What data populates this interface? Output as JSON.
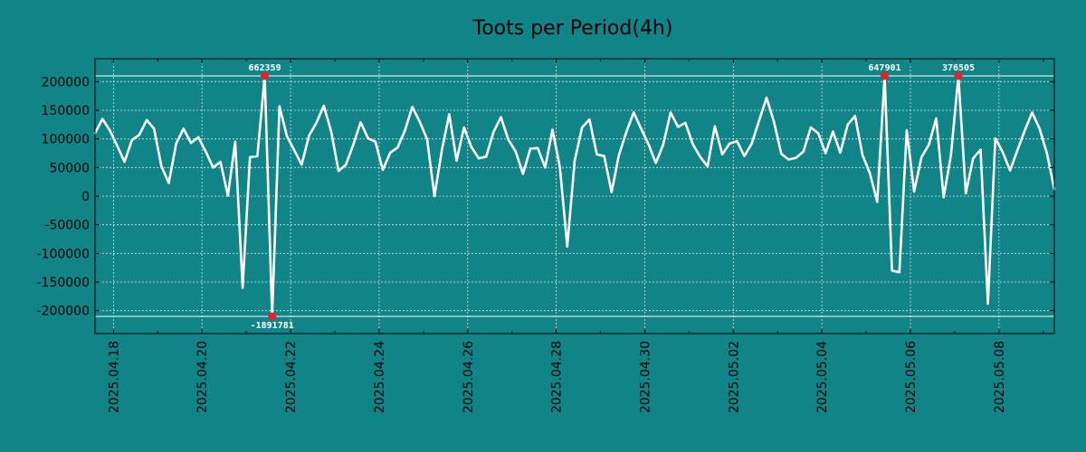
{
  "colors": {
    "background": "#118488",
    "line": "#ffffff",
    "marker": "#e8202a",
    "grid": "#cfe9e8",
    "axis": "#000000"
  },
  "chart_data": {
    "type": "line",
    "title": "Toots per Period(4h)",
    "xlabel": "",
    "ylabel": "",
    "grid": true,
    "x_range": [
      0,
      130
    ],
    "ylim": [
      -240000,
      240000
    ],
    "y_ticks": [
      {
        "value": 200000,
        "label": "200000"
      },
      {
        "value": 150000,
        "label": "150000"
      },
      {
        "value": 100000,
        "label": "100000"
      },
      {
        "value": 50000,
        "label": "50000"
      },
      {
        "value": 0,
        "label": "0"
      },
      {
        "value": -50000,
        "label": "-50000"
      },
      {
        "value": -100000,
        "label": "-100000"
      },
      {
        "value": -150000,
        "label": "-150000"
      },
      {
        "value": -200000,
        "label": "-200000"
      }
    ],
    "x_ticks": [
      {
        "value": 2.5,
        "label": "2025.04.18"
      },
      {
        "value": 14.5,
        "label": "2025.04.20"
      },
      {
        "value": 26.5,
        "label": "2025.04.22"
      },
      {
        "value": 38.5,
        "label": "2025.04.24"
      },
      {
        "value": 50.5,
        "label": "2025.04.26"
      },
      {
        "value": 62.5,
        "label": "2025.04.28"
      },
      {
        "value": 74.5,
        "label": "2025.04.30"
      },
      {
        "value": 86.5,
        "label": "2025.05.02"
      },
      {
        "value": 98.5,
        "label": "2025.05.04"
      },
      {
        "value": 110.5,
        "label": "2025.05.06"
      },
      {
        "value": 122.5,
        "label": "2025.05.08"
      }
    ],
    "x_minor_ticks": [
      8.5,
      20.5,
      32.5,
      44.5,
      56.5,
      68.5,
      80.5,
      92.5,
      104.5,
      116.5,
      128.5
    ],
    "hlines": [
      210000,
      -210000
    ],
    "series": [
      {
        "name": "toots",
        "values": [
          110000,
          135000,
          115000,
          88000,
          60000,
          98000,
          107000,
          133000,
          118000,
          52000,
          23000,
          92000,
          118000,
          93000,
          103000,
          78000,
          50000,
          60000,
          1000,
          95000,
          -160000,
          68000,
          70000,
          210000,
          -210000,
          157000,
          105000,
          80000,
          55000,
          106000,
          128000,
          158000,
          113000,
          44000,
          55000,
          90000,
          129000,
          101000,
          95000,
          46000,
          76000,
          85000,
          115000,
          156000,
          130000,
          100000,
          0,
          80000,
          143000,
          62000,
          120000,
          86000,
          66000,
          69000,
          112000,
          138000,
          99000,
          78000,
          39000,
          83000,
          84000,
          50000,
          116000,
          50000,
          -88000,
          62000,
          120000,
          134000,
          73000,
          70000,
          7000,
          72000,
          112000,
          146000,
          118000,
          91000,
          58000,
          90000,
          146000,
          121000,
          128000,
          91000,
          69000,
          52000,
          122000,
          73000,
          92000,
          96000,
          70000,
          92000,
          132000,
          172000,
          130000,
          74000,
          64000,
          67000,
          78000,
          120000,
          110000,
          75000,
          113000,
          76000,
          125000,
          140000,
          72000,
          40000,
          -10000,
          210000,
          -130000,
          -133000,
          115000,
          8000,
          68000,
          90000,
          136000,
          -2000,
          72000,
          210000,
          5000,
          66000,
          81000,
          -188000,
          101000,
          77000,
          45000,
          80000,
          115000,
          146000,
          118000,
          75000,
          12000
        ]
      }
    ],
    "annotations": [
      {
        "x": 23,
        "y": 210000,
        "label": "662359",
        "position": "above"
      },
      {
        "x": 24,
        "y": -210000,
        "label": "-1891781",
        "position": "below"
      },
      {
        "x": 107,
        "y": 210000,
        "label": "647901",
        "position": "above"
      },
      {
        "x": 117,
        "y": 210000,
        "label": "376505",
        "position": "above"
      }
    ]
  }
}
